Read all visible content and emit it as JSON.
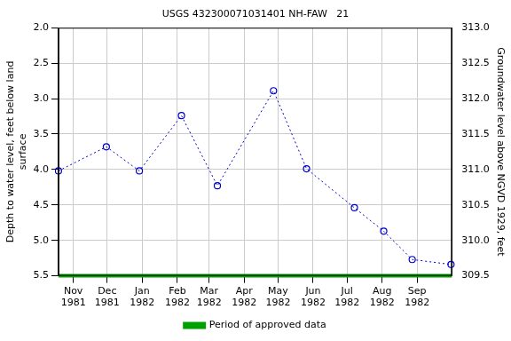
{
  "chart_data": {
    "type": "line",
    "title": "USGS 432300071031401 NH-FAW   21",
    "y_label": [
      "Depth to water level, feet below land",
      "surface"
    ],
    "y2_label": "Groundwater level above NGVD 1929, feet",
    "xlim": [
      1981.797,
      1982.75
    ],
    "xticks": [
      {
        "value": 1981.833,
        "label": "Nov 1981"
      },
      {
        "value": 1981.915,
        "label": "Dec 1981"
      },
      {
        "value": 1982.0,
        "label": "Jan 1982"
      },
      {
        "value": 1982.085,
        "label": "Feb 1982"
      },
      {
        "value": 1982.162,
        "label": "Mar 1982"
      },
      {
        "value": 1982.247,
        "label": "Apr 1982"
      },
      {
        "value": 1982.329,
        "label": "May 1982"
      },
      {
        "value": 1982.414,
        "label": "Jun 1982"
      },
      {
        "value": 1982.496,
        "label": "Jul 1982"
      },
      {
        "value": 1982.581,
        "label": "Aug 1982"
      },
      {
        "value": 1982.666,
        "label": "Sep 1982"
      }
    ],
    "ylim": [
      5.5,
      2.0
    ],
    "yticks": [
      {
        "value": 2,
        "label": "2.0"
      },
      2.5,
      {
        "value": 3,
        "label": "3.0"
      },
      3.5,
      {
        "value": 4,
        "label": "4.0"
      },
      4.5,
      {
        "value": 5,
        "label": "5.0"
      },
      5.5
    ],
    "y2lim": [
      309.5,
      313.0
    ],
    "y2ticks": [
      309.5,
      {
        "value": 310,
        "label": "310.0"
      },
      310.5,
      {
        "value": 311,
        "label": "311.0"
      },
      311.5,
      {
        "value": 312,
        "label": "312.0"
      },
      312.5,
      {
        "value": 313,
        "label": "313.0"
      }
    ],
    "grid": true,
    "legend": "bottom",
    "series": [
      {
        "color": "#0000cc",
        "marker": "circle",
        "line_style": "dotted",
        "x": [
          1981.797,
          1981.913,
          1981.993,
          1982.095,
          1982.182,
          1982.318,
          1982.398,
          1982.514,
          1982.585,
          1982.654,
          1982.748
        ],
        "values": [
          4.02,
          3.68,
          4.02,
          3.24,
          4.23,
          2.89,
          3.99,
          4.54,
          4.87,
          5.27,
          5.34
        ]
      },
      {
        "name": "Period of approved data",
        "color": "#00a000",
        "line_style": "solid",
        "x": [
          1981.797,
          1982.75
        ],
        "values": [
          5.5,
          5.5
        ]
      }
    ]
  }
}
